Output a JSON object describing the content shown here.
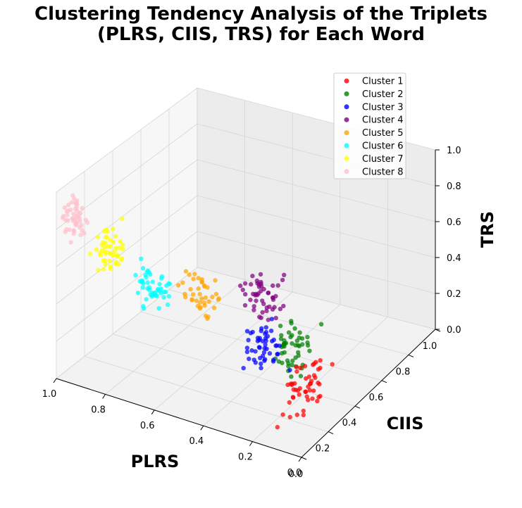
{
  "chart_data": {
    "type": "scatter",
    "projection": "3d",
    "title_lines": [
      "Clustering Tendency Analysis of the Triplets",
      "(PLRS, CIIS, TRS) for Each Word"
    ],
    "xlabel": "PLRS",
    "ylabel": "CIIS",
    "zlabel": "TRS",
    "xlim": [
      0,
      1
    ],
    "ylim": [
      0,
      1
    ],
    "zlim": [
      0,
      1
    ],
    "x_ticks": [
      "0.0",
      "0.2",
      "0.4",
      "0.6",
      "0.8",
      "1.0"
    ],
    "y_ticks": [
      "0.0",
      "0.2",
      "0.4",
      "0.6",
      "0.8",
      "1.0"
    ],
    "z_ticks": [
      "0.0",
      "0.2",
      "0.4",
      "0.6",
      "0.8",
      "1.0"
    ],
    "grid": true,
    "legend_position": "top-right",
    "series": [
      {
        "name": "Cluster 1",
        "color": "#ff0000",
        "center": [
          0.1,
          0.22,
          0.18
        ],
        "spread": [
          0.06,
          0.1,
          0.1
        ],
        "count": 50
      },
      {
        "name": "Cluster 2",
        "color": "#008000",
        "center": [
          0.28,
          0.45,
          0.18
        ],
        "spread": [
          0.07,
          0.08,
          0.1
        ],
        "count": 50
      },
      {
        "name": "Cluster 3",
        "color": "#0000ff",
        "center": [
          0.2,
          0.08,
          0.45
        ],
        "spread": [
          0.07,
          0.06,
          0.12
        ],
        "count": 50
      },
      {
        "name": "Cluster 4",
        "color": "#800080",
        "center": [
          0.55,
          0.7,
          0.18
        ],
        "spread": [
          0.07,
          0.08,
          0.1
        ],
        "count": 50
      },
      {
        "name": "Cluster 5",
        "color": "#ffa500",
        "center": [
          0.45,
          0.05,
          0.65
        ],
        "spread": [
          0.07,
          0.05,
          0.1
        ],
        "count": 40
      },
      {
        "name": "Cluster 6",
        "color": "#00ffff",
        "center": [
          0.68,
          0.12,
          0.55
        ],
        "spread": [
          0.07,
          0.06,
          0.1
        ],
        "count": 50
      },
      {
        "name": "Cluster 7",
        "color": "#ffff00",
        "center": [
          0.85,
          0.1,
          0.7
        ],
        "spread": [
          0.06,
          0.06,
          0.1
        ],
        "count": 50
      },
      {
        "name": "Cluster 8",
        "color": "#ffc0cb",
        "center": [
          0.95,
          0.05,
          0.85
        ],
        "spread": [
          0.04,
          0.05,
          0.1
        ],
        "count": 50
      }
    ]
  }
}
